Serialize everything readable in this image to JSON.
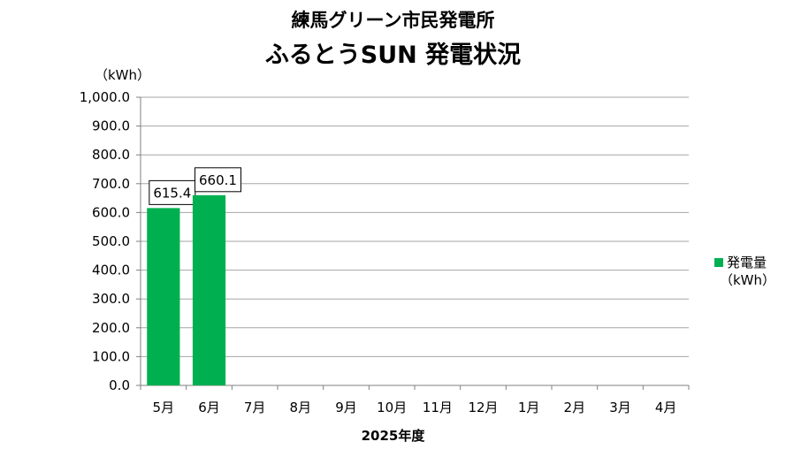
{
  "chart_data": {
    "type": "bar",
    "title": "練馬グリーン市民発電所",
    "subtitle": "ふるとうSUN 発電状況",
    "ylabel": "（kWh）",
    "xlabel": "2025年度",
    "categories": [
      "5月",
      "6月",
      "7月",
      "8月",
      "9月",
      "10月",
      "11月",
      "12月",
      "1月",
      "2月",
      "3月",
      "4月"
    ],
    "series": [
      {
        "name": "発電量",
        "name_unit": "（kWh）",
        "values": [
          615.4,
          660.1,
          null,
          null,
          null,
          null,
          null,
          null,
          null,
          null,
          null,
          null
        ],
        "data_labels": [
          "615.4",
          "660.1"
        ]
      }
    ],
    "ylim": [
      0,
      1000
    ],
    "yticks": [
      "0.0",
      "100.0",
      "200.0",
      "300.0",
      "400.0",
      "500.0",
      "600.0",
      "700.0",
      "800.0",
      "900.0",
      "1,000.0"
    ],
    "grid": true,
    "legend": "right",
    "bar_color": "#00b050"
  }
}
